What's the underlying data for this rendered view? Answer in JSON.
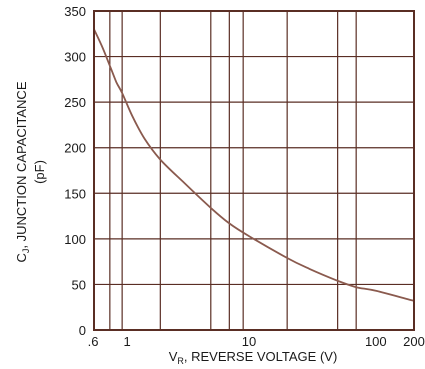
{
  "chart_data": {
    "type": "line",
    "title": "",
    "xscale": "log",
    "xlim": [
      0.6,
      200
    ],
    "ylim": [
      0,
      350
    ],
    "grid": true,
    "x_ticks": [
      {
        "value": 0.6,
        "label": ".6"
      },
      {
        "value": 1,
        "label": "1"
      },
      {
        "value": 10,
        "label": "10"
      },
      {
        "value": 100,
        "label": "100"
      },
      {
        "value": 200,
        "label": "200"
      }
    ],
    "x_gridlines": [
      0.8,
      1,
      2,
      5,
      7,
      9,
      20,
      50,
      70,
      200
    ],
    "y_ticks": [
      0,
      50,
      100,
      150,
      200,
      250,
      300,
      350
    ],
    "xlabel": {
      "main": "V",
      "sub": "R",
      "rest": ", REVERSE VOLTAGE (V)"
    },
    "ylabel": {
      "main": "C",
      "sub": "J",
      "rest": ", JUNCTION CAPACITANCE",
      "line2": "(pF)"
    },
    "series": [
      {
        "color": "#8a5a4e",
        "x": [
          0.6,
          0.7,
          0.8,
          0.9,
          1.0,
          1.2,
          1.5,
          2,
          3,
          5,
          7,
          10,
          20,
          30,
          50,
          70,
          100,
          200
        ],
        "y": [
          330,
          310,
          290,
          272,
          260,
          235,
          210,
          187,
          163,
          134,
          117,
          103,
          79,
          67,
          54,
          47,
          43,
          32
        ]
      }
    ],
    "colors": {
      "grid": "#5a2e24",
      "frame": "#5a2e24",
      "curve": "#8a5a4e"
    }
  }
}
